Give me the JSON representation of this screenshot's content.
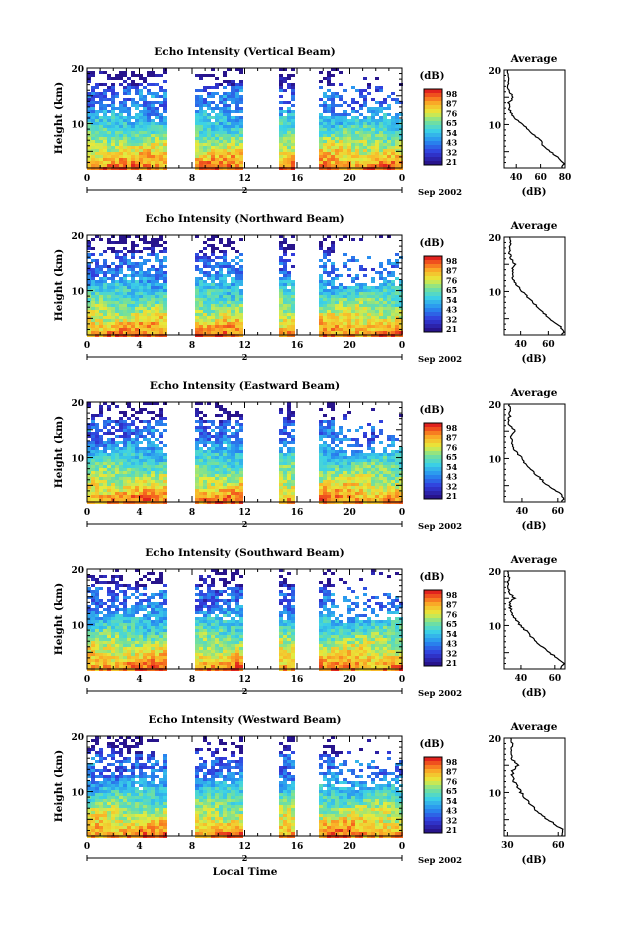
{
  "chart_data": [
    {
      "type": "heatmap",
      "title": "Echo Intensity (Vertical Beam)",
      "ylabel": "Height (km)",
      "y_ticks": [
        "20",
        "10"
      ],
      "x_ticks": [
        "0",
        "4",
        "8",
        "12",
        "16",
        "20",
        "0"
      ],
      "xlim_hours": [
        0,
        24
      ],
      "ylim_km": [
        2,
        20
      ],
      "day_marker": "2",
      "date_label": "Sep 2002",
      "data_gaps_hours": [
        [
          6,
          8.2
        ],
        [
          12,
          14.6
        ],
        [
          16,
          17.6
        ]
      ],
      "colorbar": {
        "label": "(dB)",
        "ticks": [
          "98",
          "87",
          "76",
          "65",
          "54",
          "43",
          "32",
          "21"
        ]
      },
      "average_profile": {
        "title": "Average",
        "xlabel": "(dB)",
        "x_ticks": [
          "40",
          "60",
          "80"
        ],
        "y_ticks": [
          "20",
          "10"
        ],
        "xlim": [
          30,
          80
        ],
        "height_km": [
          2,
          3,
          4,
          5,
          6,
          7,
          8,
          9,
          10,
          11,
          12,
          13,
          14,
          15,
          16,
          17,
          18,
          19,
          20
        ],
        "values_db": [
          78,
          79,
          74,
          68,
          62,
          60,
          55,
          50,
          45,
          40,
          36,
          34,
          34,
          38,
          34,
          33,
          33,
          34,
          33
        ]
      }
    },
    {
      "type": "heatmap",
      "title": "Echo Intensity (Northward Beam)",
      "ylabel": "Height (km)",
      "y_ticks": [
        "20",
        "10"
      ],
      "x_ticks": [
        "0",
        "4",
        "8",
        "12",
        "16",
        "20",
        "0"
      ],
      "xlim_hours": [
        0,
        24
      ],
      "ylim_km": [
        2,
        20
      ],
      "day_marker": "2",
      "date_label": "Sep 2002",
      "data_gaps_hours": [
        [
          6,
          8.2
        ],
        [
          12,
          14.6
        ],
        [
          16,
          17.6
        ]
      ],
      "colorbar": {
        "label": "(dB)",
        "ticks": [
          "98",
          "87",
          "76",
          "65",
          "54",
          "43",
          "32",
          "21"
        ]
      },
      "average_profile": {
        "title": "Average",
        "xlabel": "(dB)",
        "x_ticks": [
          "40",
          "60"
        ],
        "y_ticks": [
          "20",
          "10"
        ],
        "xlim": [
          28,
          72
        ],
        "height_km": [
          2,
          3,
          4,
          5,
          6,
          7,
          8,
          9,
          10,
          11,
          12,
          13,
          14,
          15,
          16,
          17,
          18,
          19,
          20
        ],
        "values_db": [
          70,
          71,
          66,
          61,
          57,
          53,
          49,
          45,
          41,
          38,
          35,
          34,
          34,
          36,
          33,
          32,
          32,
          33,
          32
        ]
      }
    },
    {
      "type": "heatmap",
      "title": "Echo Intensity (Eastward Beam)",
      "ylabel": "Height (km)",
      "y_ticks": [
        "20",
        "10"
      ],
      "x_ticks": [
        "0",
        "4",
        "8",
        "12",
        "16",
        "20",
        "0"
      ],
      "xlim_hours": [
        0,
        24
      ],
      "ylim_km": [
        2,
        20
      ],
      "day_marker": "2",
      "date_label": "Sep 2002",
      "data_gaps_hours": [
        [
          6,
          8.2
        ],
        [
          12,
          14.6
        ],
        [
          16,
          17.6
        ]
      ],
      "colorbar": {
        "label": "(dB)",
        "ticks": [
          "98",
          "87",
          "76",
          "65",
          "54",
          "43",
          "32",
          "21"
        ]
      },
      "average_profile": {
        "title": "Average",
        "xlabel": "(dB)",
        "x_ticks": [
          "40",
          "60"
        ],
        "y_ticks": [
          "20",
          "10"
        ],
        "xlim": [
          30,
          64
        ],
        "height_km": [
          2,
          3,
          4,
          5,
          6,
          7,
          8,
          9,
          10,
          11,
          12,
          13,
          14,
          15,
          16,
          17,
          18,
          19,
          20
        ],
        "values_db": [
          62,
          63,
          59,
          55,
          51,
          48,
          45,
          42,
          40,
          37,
          35,
          34,
          34,
          36,
          33,
          33,
          33,
          33,
          33
        ]
      }
    },
    {
      "type": "heatmap",
      "title": "Echo Intensity (Southward Beam)",
      "ylabel": "Height (km)",
      "y_ticks": [
        "20",
        "10"
      ],
      "x_ticks": [
        "0",
        "4",
        "8",
        "12",
        "16",
        "20",
        "0"
      ],
      "xlim_hours": [
        0,
        24
      ],
      "ylim_km": [
        2,
        20
      ],
      "day_marker": "2",
      "date_label": "Sep 2002",
      "data_gaps_hours": [
        [
          6,
          8.2
        ],
        [
          12,
          14.6
        ],
        [
          16,
          17.6
        ]
      ],
      "colorbar": {
        "label": "(dB)",
        "ticks": [
          "98",
          "87",
          "76",
          "65",
          "54",
          "43",
          "32",
          "21"
        ]
      },
      "average_profile": {
        "title": "Average",
        "xlabel": "(dB)",
        "x_ticks": [
          "40",
          "60"
        ],
        "y_ticks": [
          "20",
          "10"
        ],
        "xlim": [
          30,
          66
        ],
        "height_km": [
          2,
          3,
          4,
          5,
          6,
          7,
          8,
          9,
          10,
          11,
          12,
          13,
          14,
          15,
          16,
          17,
          18,
          19,
          20
        ],
        "values_db": [
          64,
          65,
          61,
          57,
          53,
          49,
          46,
          43,
          40,
          37,
          35,
          34,
          33,
          36,
          33,
          33,
          32,
          33,
          32
        ]
      }
    },
    {
      "type": "heatmap",
      "title": "Echo Intensity (Westward Beam)",
      "ylabel": "Height (km)",
      "xlabel": "Local Time",
      "y_ticks": [
        "20",
        "10"
      ],
      "x_ticks": [
        "0",
        "4",
        "8",
        "12",
        "16",
        "20",
        "0"
      ],
      "xlim_hours": [
        0,
        24
      ],
      "ylim_km": [
        2,
        20
      ],
      "day_marker": "2",
      "date_label": "Sep 2002",
      "data_gaps_hours": [
        [
          6,
          8.2
        ],
        [
          12,
          14.6
        ],
        [
          16,
          17.6
        ]
      ],
      "colorbar": {
        "label": "(dB)",
        "ticks": [
          "98",
          "87",
          "76",
          "65",
          "54",
          "43",
          "32",
          "21"
        ]
      },
      "average_profile": {
        "title": "Average",
        "xlabel": "(dB)",
        "x_ticks": [
          "30",
          "60"
        ],
        "y_ticks": [
          "20",
          "10"
        ],
        "xlim": [
          28,
          64
        ],
        "height_km": [
          2,
          3,
          4,
          5,
          6,
          7,
          8,
          9,
          10,
          11,
          12,
          13,
          14,
          15,
          16,
          17,
          18,
          19,
          20
        ],
        "values_db": [
          62,
          63,
          59,
          54,
          50,
          46,
          43,
          40,
          38,
          36,
          34,
          33,
          33,
          36,
          33,
          32,
          32,
          33,
          32
        ]
      }
    }
  ]
}
